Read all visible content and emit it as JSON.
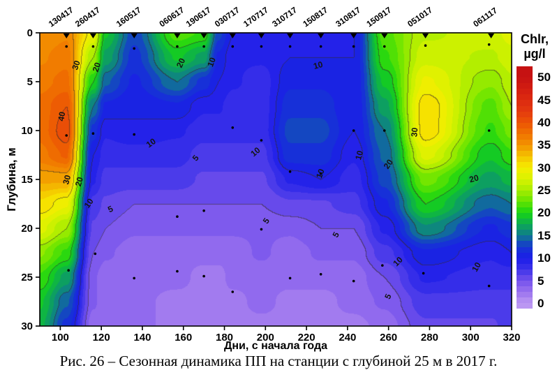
{
  "figure": {
    "caption": "Рис. 26 – Сезонная динамика ПП на станции с глубиной 25 м в 2017 г."
  },
  "chart_data": {
    "type": "heatmap",
    "subtype": "filled-contour-depth-time-section",
    "xlabel": "Дни, с начала года",
    "ylabel": "Глубина, м",
    "colorbar_title": "Chlr,",
    "colorbar_units": "µg/l",
    "x_range": [
      90,
      320
    ],
    "x_ticks": [
      100,
      120,
      140,
      160,
      180,
      200,
      220,
      240,
      260,
      280,
      300,
      320
    ],
    "y_range": [
      0,
      30
    ],
    "y_ticks": [
      0,
      5,
      10,
      15,
      20,
      25,
      30
    ],
    "y_inverted": true,
    "grid_lines": false,
    "legend_position": "right-colorbar",
    "colorbar_ticks": [
      50,
      45,
      40,
      35,
      30,
      25,
      20,
      15,
      10,
      5,
      0
    ],
    "band_step": 1.25,
    "line_contour_step": 5,
    "colormap": [
      [
        0,
        "#bb97f2"
      ],
      [
        2.5,
        "#9a72ee"
      ],
      [
        5,
        "#7552ec"
      ],
      [
        7.5,
        "#3d33e9"
      ],
      [
        10,
        "#1b1ce9"
      ],
      [
        12.5,
        "#1536d2"
      ],
      [
        15,
        "#0f7b8c"
      ],
      [
        17.5,
        "#0cab52"
      ],
      [
        20,
        "#17d414"
      ],
      [
        22.5,
        "#63e400"
      ],
      [
        25,
        "#a6ec00"
      ],
      [
        27.5,
        "#d8f200"
      ],
      [
        30,
        "#f7ec00"
      ],
      [
        32.5,
        "#f4c200"
      ],
      [
        35,
        "#f29300"
      ],
      [
        37.5,
        "#f07400"
      ],
      [
        40,
        "#ec5404"
      ],
      [
        42.5,
        "#e43a0e"
      ],
      [
        45,
        "#dc2a10"
      ],
      [
        47.5,
        "#d21d11"
      ],
      [
        50,
        "#c61212"
      ]
    ],
    "station_dates": {
      "labels": [
        "130417",
        "260417",
        "160517",
        "060617",
        "190617",
        "030717",
        "170717",
        "310717",
        "150817",
        "310817",
        "150917",
        "051017",
        "061117"
      ],
      "days": [
        103,
        116,
        136,
        157,
        170,
        184,
        198,
        212,
        227,
        243,
        258,
        278,
        310
      ]
    },
    "grid": {
      "days": [
        90,
        103,
        116,
        122,
        136,
        157,
        170,
        177,
        184,
        198,
        212,
        227,
        243,
        258,
        278,
        310,
        320
      ],
      "depths": [
        0,
        2.5,
        5,
        7.5,
        10,
        12.5,
        15,
        17.5,
        20,
        22.5,
        25,
        27.5,
        30
      ],
      "values_by_day": [
        [
          35,
          36,
          37,
          38,
          38,
          37,
          34,
          31,
          28,
          24,
          21,
          19,
          18
        ],
        [
          36,
          37,
          38,
          40,
          41,
          39,
          34,
          29,
          25,
          21,
          17,
          14,
          12
        ],
        [
          29,
          25,
          20,
          15,
          12,
          10,
          9,
          7,
          6,
          5,
          4,
          4,
          3
        ],
        [
          19,
          17,
          14,
          11,
          9,
          8,
          7,
          6,
          5,
          4,
          3,
          3,
          3
        ],
        [
          13,
          12,
          11,
          10,
          10,
          8,
          7,
          5,
          4,
          3,
          3,
          3,
          3
        ],
        [
          22,
          19,
          15,
          11,
          9,
          8,
          7,
          5,
          4,
          3,
          3,
          2,
          2
        ],
        [
          21,
          17,
          12,
          9,
          8,
          7,
          6,
          5,
          4,
          3,
          2,
          2,
          2
        ],
        [
          13,
          11,
          10,
          9,
          8,
          7,
          6,
          5,
          4,
          3,
          2,
          2,
          2
        ],
        [
          10,
          9,
          9,
          8,
          8,
          7,
          6,
          5,
          4,
          3,
          3,
          2,
          2
        ],
        [
          9,
          9,
          8,
          8,
          8,
          7,
          6,
          5,
          4,
          4,
          3,
          3,
          2
        ],
        [
          9,
          10,
          11,
          12,
          13,
          12,
          9,
          6,
          4,
          3,
          3,
          2,
          2
        ],
        [
          9,
          10,
          11,
          12,
          13,
          12,
          10,
          6,
          5,
          4,
          3,
          2,
          2
        ],
        [
          10,
          10,
          10,
          10,
          10,
          9,
          8,
          7,
          5,
          4,
          3,
          3,
          2
        ],
        [
          22,
          21,
          19,
          17,
          15,
          14,
          13,
          11,
          9,
          7,
          5,
          4,
          3
        ],
        [
          26,
          27,
          29,
          31,
          31,
          28,
          23,
          20,
          16,
          11,
          9,
          7,
          6
        ],
        [
          27,
          26,
          24,
          22,
          21,
          19,
          17,
          14,
          11,
          9,
          8,
          7,
          6
        ],
        [
          28,
          27,
          26,
          25,
          23,
          21,
          18,
          15,
          12,
          10,
          8,
          7,
          7
        ]
      ]
    },
    "contour_labels": [
      {
        "v": 40,
        "day": 102,
        "depth": 8.6,
        "rot": -80
      },
      {
        "v": 30,
        "day": 109,
        "depth": 3.4,
        "rot": -72
      },
      {
        "v": 20,
        "day": 119,
        "depth": 3.6,
        "rot": -72
      },
      {
        "v": 30,
        "day": 104.5,
        "depth": 15.1,
        "rot": -75
      },
      {
        "v": 20,
        "day": 110.5,
        "depth": 15.3,
        "rot": -75
      },
      {
        "v": 10,
        "day": 115,
        "depth": 17.6,
        "rot": -55
      },
      {
        "v": 5,
        "day": 125,
        "depth": 18.3,
        "rot": -25
      },
      {
        "v": 10,
        "day": 145,
        "depth": 11.5,
        "rot": -35
      },
      {
        "v": 5,
        "day": 167,
        "depth": 13,
        "rot": -50
      },
      {
        "v": 20,
        "day": 160,
        "depth": 3.2,
        "rot": -65
      },
      {
        "v": 10,
        "day": 175,
        "depth": 3.1,
        "rot": -70
      },
      {
        "v": 10,
        "day": 196,
        "depth": 12.4,
        "rot": -40
      },
      {
        "v": 5,
        "day": 201.5,
        "depth": 19.4,
        "rot": -55
      },
      {
        "v": 10,
        "day": 226,
        "depth": 3.6,
        "rot": -15
      },
      {
        "v": 10,
        "day": 228,
        "depth": 14.5,
        "rot": -70
      },
      {
        "v": 5,
        "day": 235.5,
        "depth": 20.8,
        "rot": -60
      },
      {
        "v": 10,
        "day": 247,
        "depth": 12.6,
        "rot": -75
      },
      {
        "v": 20,
        "day": 261,
        "depth": 13.6,
        "rot": -55
      },
      {
        "v": 30,
        "day": 274,
        "depth": 10.2,
        "rot": -85
      },
      {
        "v": 10,
        "day": 265.5,
        "depth": 23.6,
        "rot": -45
      },
      {
        "v": 5,
        "day": 261,
        "depth": 27.1,
        "rot": -65
      },
      {
        "v": 20,
        "day": 302,
        "depth": 15.2,
        "rot": -15
      },
      {
        "v": 10,
        "day": 304,
        "depth": 24.1,
        "rot": -60
      }
    ],
    "sample_points": [
      [
        103,
        1.4
      ],
      [
        116,
        1.4
      ],
      [
        136,
        1.6
      ],
      [
        157,
        1.4
      ],
      [
        170,
        1.4
      ],
      [
        184,
        1.4
      ],
      [
        198,
        1.4
      ],
      [
        212,
        1.4
      ],
      [
        227,
        1.4
      ],
      [
        243,
        1.4
      ],
      [
        258,
        1.4
      ],
      [
        278,
        1.3
      ],
      [
        309,
        1.2
      ],
      [
        103,
        10.5
      ],
      [
        116,
        10.3
      ],
      [
        136,
        10.4
      ],
      [
        184,
        9.7
      ],
      [
        198,
        11
      ],
      [
        212,
        14.2
      ],
      [
        227,
        14.4
      ],
      [
        243,
        10
      ],
      [
        258,
        10
      ],
      [
        309,
        10
      ],
      [
        104,
        24.3
      ],
      [
        117,
        22.6
      ],
      [
        136,
        25.1
      ],
      [
        157,
        18.8
      ],
      [
        157,
        24.4
      ],
      [
        170,
        18.2
      ],
      [
        170,
        24.9
      ],
      [
        184,
        26.5
      ],
      [
        198,
        20.1
      ],
      [
        212,
        25.1
      ],
      [
        227,
        24.7
      ],
      [
        243,
        25.4
      ],
      [
        257,
        23.8
      ],
      [
        277,
        24.6
      ],
      [
        309,
        25.9
      ]
    ]
  }
}
